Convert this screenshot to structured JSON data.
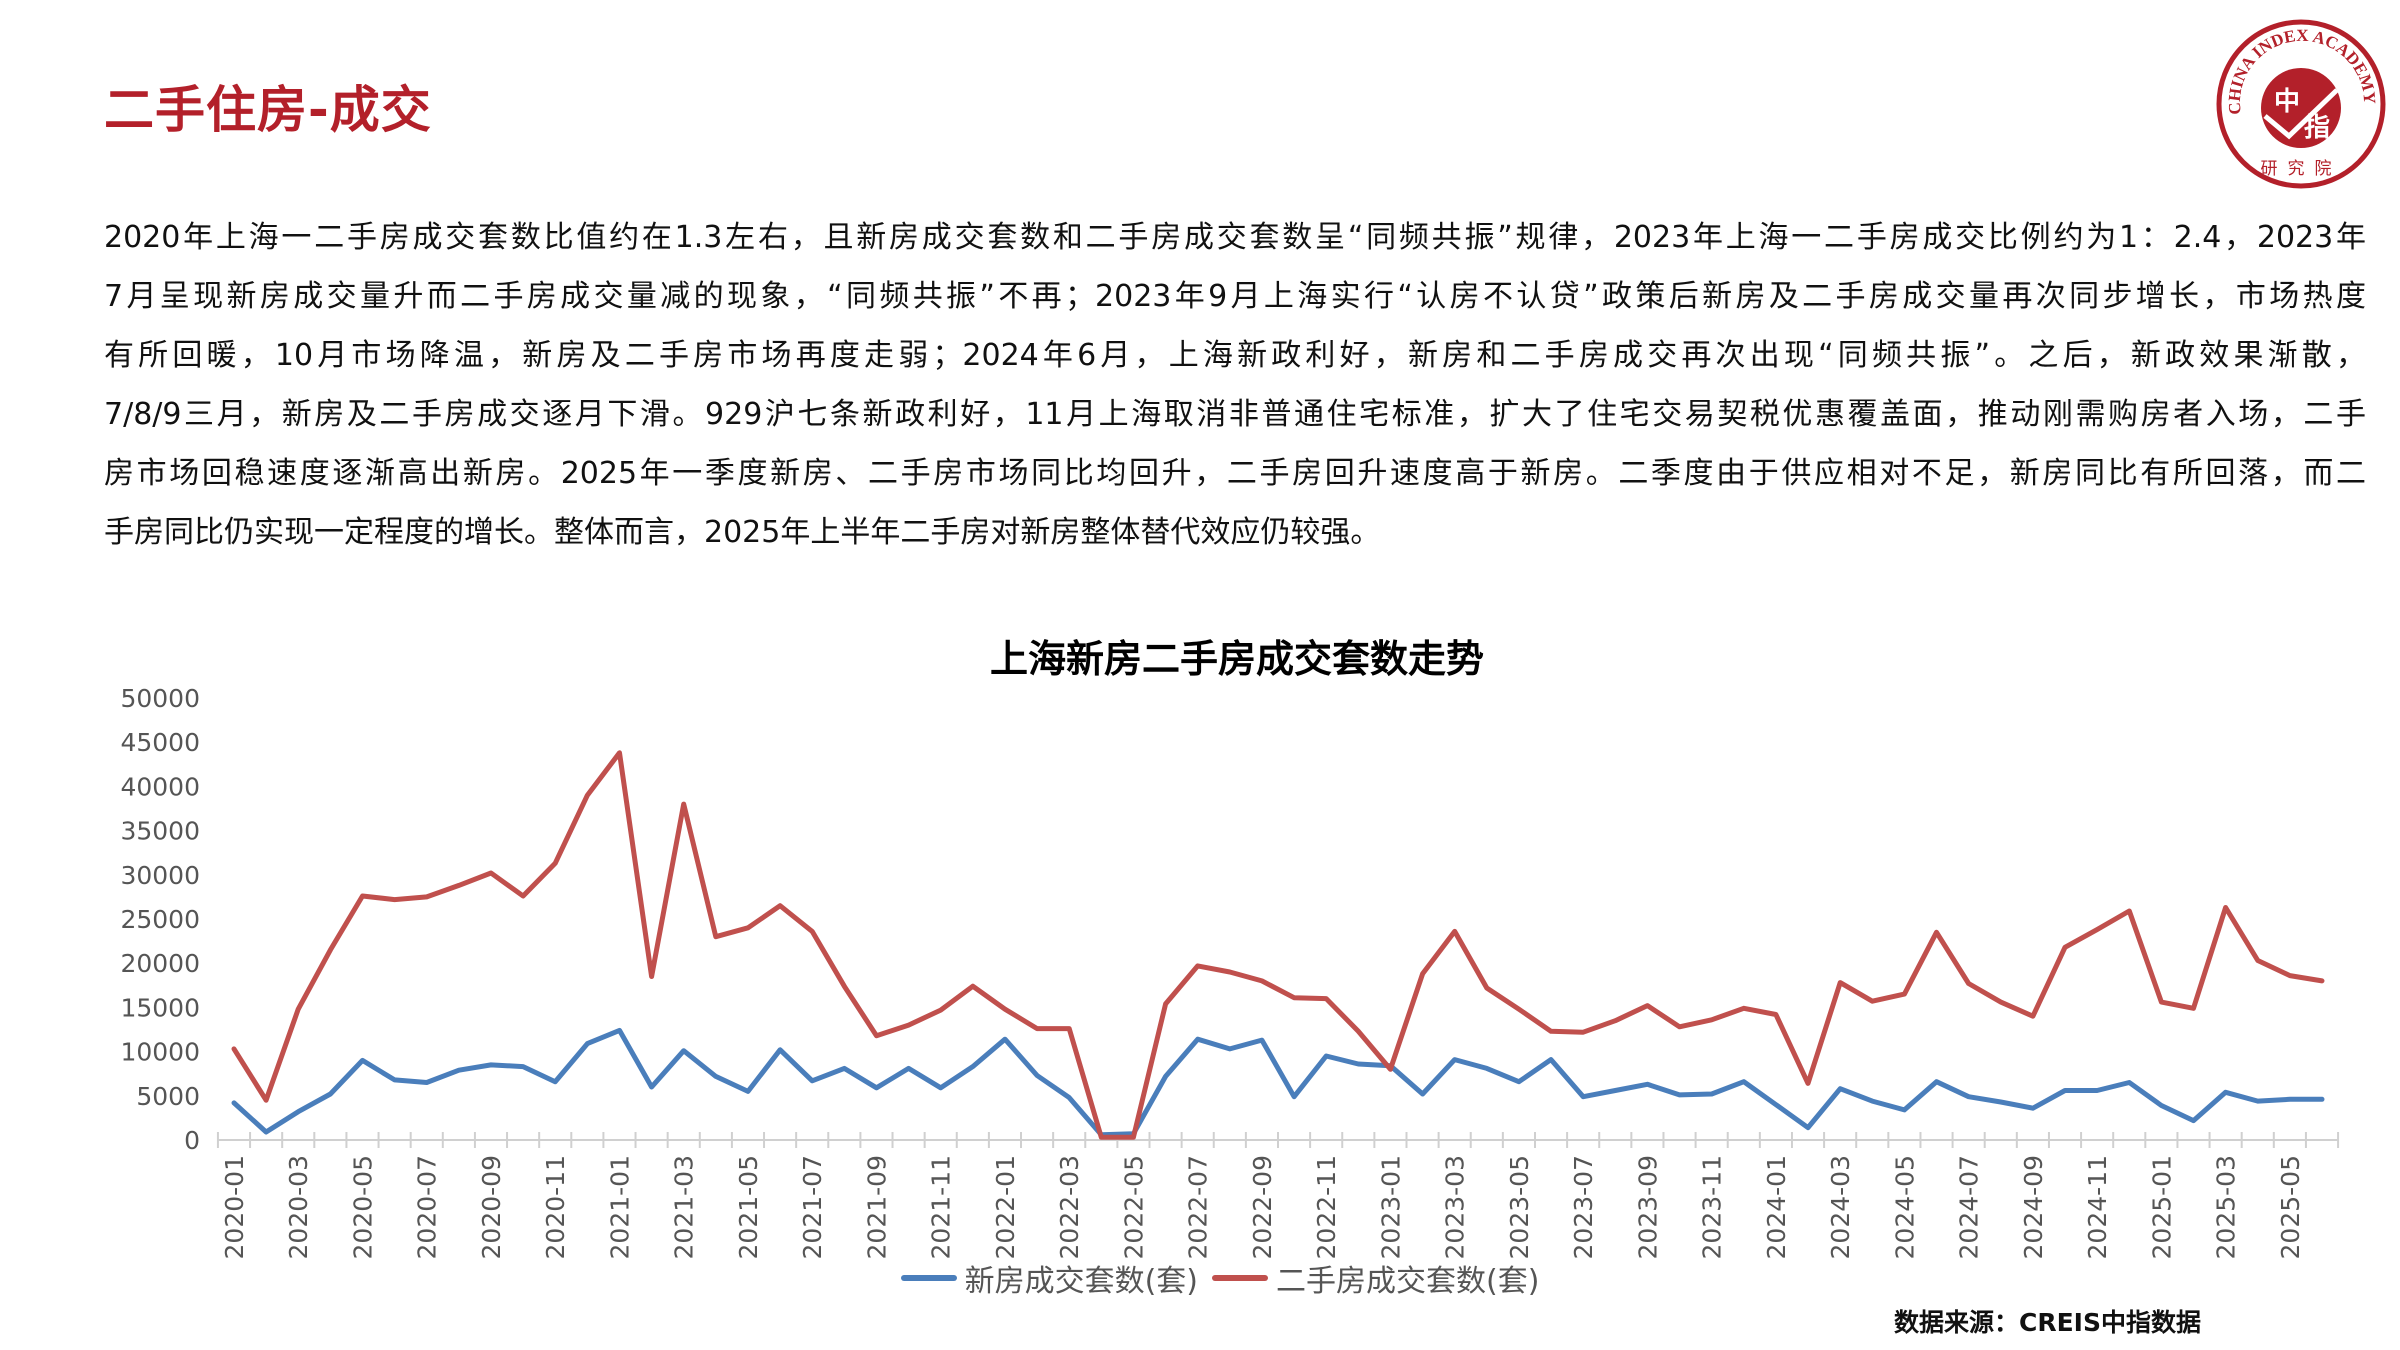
{
  "header": {
    "title": "二手住房-成交",
    "logo_text": "CHINA INDEX ACADEMY 中指 研究院"
  },
  "paragraph": [
    "2020年上海一二手房成交套数比值约在1.3左右，且新房成交套数和二手房成交套数呈“同频共振”规律，2023年上海一二手房成交比例约为1：2.4，2023年",
    "7月呈现新房成交量升而二手房成交量减的现象，“同频共振”不再；2023年9月上海实行“认房不认贷”政策后新房及二手房成交量再次同步增长，市场热度",
    "有所回暖，10月市场降温，新房及二手房市场再度走弱；2024年6月，上海新政利好，新房和二手房成交再次出现“同频共振”。之后，新政效果渐散，",
    "7/8/9三月，新房及二手房成交逐月下滑。929沪七条新政利好，11月上海取消非普通住宅标准，扩大了住宅交易契税优惠覆盖面，推动刚需购房者入场，二手",
    "房市场回稳速度逐渐高出新房。2025年一季度新房、二手房市场同比均回升，二手房回升速度高于新房。二季度由于供应相对不足，新房同比有所回落，而二",
    "手房同比仍实现一定程度的增长。整体而言，2025年上半年二手房对新房整体替代效应仍较强。"
  ],
  "source": "数据来源：CREIS中指数据",
  "chart_data": {
    "type": "line",
    "title": "上海新房二手房成交套数走势",
    "xlabel": "",
    "ylabel": "",
    "ylim": [
      0,
      50000
    ],
    "yticks": [
      "0",
      "5000",
      "10000",
      "15000",
      "20000",
      "25000",
      "30000",
      "35000",
      "40000",
      "45000",
      "50000"
    ],
    "grid": false,
    "legend": "bottom",
    "x": [
      "2020-01",
      "2020-02",
      "2020-03",
      "2020-04",
      "2020-05",
      "2020-06",
      "2020-07",
      "2020-08",
      "2020-09",
      "2020-10",
      "2020-11",
      "2020-12",
      "2021-01",
      "2021-02",
      "2021-03",
      "2021-04",
      "2021-05",
      "2021-06",
      "2021-07",
      "2021-08",
      "2021-09",
      "2021-10",
      "2021-11",
      "2021-12",
      "2022-01",
      "2022-02",
      "2022-03",
      "2022-04",
      "2022-05",
      "2022-06",
      "2022-07",
      "2022-08",
      "2022-09",
      "2022-10",
      "2022-11",
      "2022-12",
      "2023-01",
      "2023-02",
      "2023-03",
      "2023-04",
      "2023-05",
      "2023-06",
      "2023-07",
      "2023-08",
      "2023-09",
      "2023-10",
      "2023-11",
      "2023-12",
      "2024-01",
      "2024-02",
      "2024-03",
      "2024-04",
      "2024-05",
      "2024-06",
      "2024-07",
      "2024-08",
      "2024-09",
      "2024-10",
      "2024-11",
      "2024-12",
      "2025-01",
      "2025-02",
      "2025-03",
      "2025-04",
      "2025-05",
      "2025-06"
    ],
    "series": [
      {
        "name": "新房成交套数(套)",
        "color": "#4a7ebb",
        "values": [
          4200,
          900,
          3200,
          5200,
          9000,
          6800,
          6500,
          7900,
          8500,
          8300,
          6600,
          10900,
          12400,
          6000,
          10100,
          7200,
          5500,
          10200,
          6700,
          8100,
          5900,
          8100,
          5900,
          8300,
          11400,
          7300,
          4800,
          600,
          700,
          7200,
          11400,
          10300,
          11300,
          4900,
          9500,
          8600,
          8400,
          5200,
          9100,
          8100,
          6600,
          9100,
          4900,
          5600,
          6300,
          5100,
          5200,
          6600,
          4000,
          1400,
          5800,
          4400,
          3400,
          6600,
          4900,
          4300,
          3600,
          5600,
          5600,
          6500,
          3900,
          2200,
          5400,
          4400,
          4600,
          4600
        ]
      },
      {
        "name": "二手房成交套数(套)",
        "color": "#c0504d",
        "values": [
          10300,
          4500,
          14800,
          21500,
          27600,
          27200,
          27500,
          28800,
          30200,
          27600,
          31300,
          39000,
          43800,
          18500,
          38000,
          23000,
          24000,
          26500,
          23600,
          17400,
          11800,
          13000,
          14700,
          17400,
          14800,
          12600,
          12600,
          300,
          300,
          15400,
          19700,
          19000,
          18000,
          16100,
          16000,
          12300,
          8000,
          18800,
          23600,
          17200,
          14800,
          12300,
          12200,
          13500,
          15200,
          12800,
          13600,
          14900,
          14200,
          6400,
          17800,
          15700,
          16500,
          23500,
          17700,
          15600,
          14000,
          21800,
          23800,
          25900,
          15600,
          14900,
          26300,
          20300,
          18600,
          18000
        ]
      }
    ]
  }
}
